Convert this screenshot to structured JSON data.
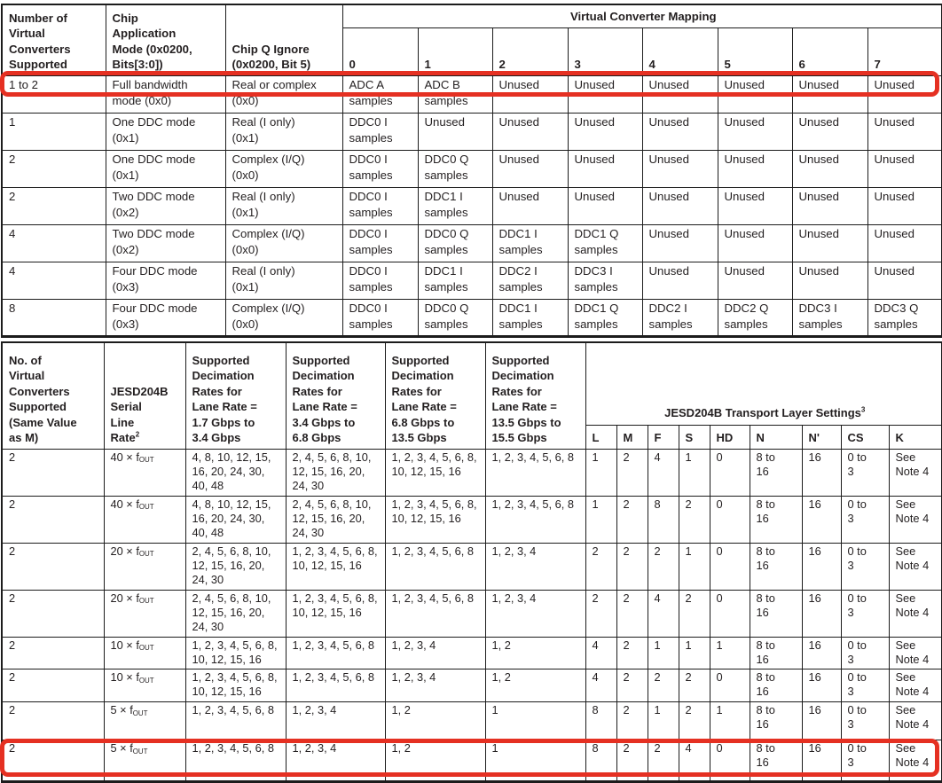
{
  "page": {
    "text_color": "#231f20",
    "border_color": "#1c1c1c",
    "highlight_color": "#e53022",
    "background": "#ffffff"
  },
  "table1": {
    "headers": {
      "col_a": "Number of\nVirtual\nConverters\nSupported",
      "col_b": "Chip\nApplication\nMode (0x0200,\nBits[3:0])",
      "col_c": "Chip Q Ignore\n(0x0200, Bit 5)",
      "group": "Virtual Converter Mapping",
      "mapping": [
        "0",
        "1",
        "2",
        "3",
        "4",
        "5",
        "6",
        "7"
      ]
    },
    "rows": [
      {
        "highlight": true,
        "n": "1 to 2",
        "mode": "Full bandwidth\nmode (0x0)",
        "q": "Real or complex\n(0x0)",
        "m": [
          "ADC A\nsamples",
          "ADC B\nsamples",
          "Unused",
          "Unused",
          "Unused",
          "Unused",
          "Unused",
          "Unused"
        ]
      },
      {
        "highlight": false,
        "n": "1",
        "mode": "One DDC mode\n(0x1)",
        "q": "Real (I only)\n(0x1)",
        "m": [
          "DDC0 I\nsamples",
          "Unused",
          "Unused",
          "Unused",
          "Unused",
          "Unused",
          "Unused",
          "Unused"
        ]
      },
      {
        "highlight": false,
        "n": "2",
        "mode": "One DDC mode\n(0x1)",
        "q": "Complex (I/Q)\n(0x0)",
        "m": [
          "DDC0 I\nsamples",
          "DDC0 Q\nsamples",
          "Unused",
          "Unused",
          "Unused",
          "Unused",
          "Unused",
          "Unused"
        ]
      },
      {
        "highlight": false,
        "n": "2",
        "mode": "Two DDC mode\n(0x2)",
        "q": "Real (I only)\n(0x1)",
        "m": [
          "DDC0 I\nsamples",
          "DDC1 I\nsamples",
          "Unused",
          "Unused",
          "Unused",
          "Unused",
          "Unused",
          "Unused"
        ]
      },
      {
        "highlight": false,
        "n": "4",
        "mode": "Two DDC mode\n(0x2)",
        "q": "Complex (I/Q)\n(0x0)",
        "m": [
          "DDC0 I\nsamples",
          "DDC0 Q\nsamples",
          "DDC1 I\nsamples",
          "DDC1 Q\nsamples",
          "Unused",
          "Unused",
          "Unused",
          "Unused"
        ]
      },
      {
        "highlight": false,
        "n": "4",
        "mode": "Four DDC mode\n(0x3)",
        "q": "Real (I only)\n(0x1)",
        "m": [
          "DDC0 I\nsamples",
          "DDC1 I\nsamples",
          "DDC2 I\nsamples",
          "DDC3 I\nsamples",
          "Unused",
          "Unused",
          "Unused",
          "Unused"
        ]
      },
      {
        "highlight": false,
        "n": "8",
        "mode": "Four DDC mode\n(0x3)",
        "q": "Complex (I/Q)\n(0x0)",
        "m": [
          "DDC0 I\nsamples",
          "DDC0 Q\nsamples",
          "DDC1 I\nsamples",
          "DDC1 Q\nsamples",
          "DDC2 I\nsamples",
          "DDC2 Q\nsamples",
          "DDC3 I\nsamples",
          "DDC3 Q\nsamples"
        ]
      }
    ]
  },
  "table2": {
    "headers": {
      "col_a": "No. of\nVirtual\nConverters\nSupported\n(Same Value\nas M)",
      "col_b": "JESD204B\nSerial\nLine\nRate^{2}",
      "dec": [
        "Supported\nDecimation\nRates for\nLane Rate =\n1.7 Gbps to\n3.4 Gbps",
        "Supported\nDecimation\nRates for\nLane Rate =\n3.4 Gbps to\n6.8 Gbps",
        "Supported\nDecimation\nRates for\nLane Rate =\n6.8 Gbps to\n13.5 Gbps",
        "Supported\nDecimation\nRates for\nLane Rate =\n13.5 Gbps to\n15.5 Gbps"
      ],
      "group": "JESD204B Transport Layer Settings^{3}",
      "transport": [
        "L",
        "M",
        "F",
        "S",
        "HD",
        "N",
        "N'",
        "CS",
        "K"
      ]
    },
    "rows": [
      {
        "highlight": false,
        "n": "2",
        "rate": "40 × f_{OUT}",
        "d1": "4, 8, 10, 12, 15,\n16, 20, 24, 30,\n40, 48",
        "d2": "2, 4, 5, 6, 8, 10,\n12, 15, 16, 20,\n24, 30",
        "d3": "1, 2, 3, 4, 5, 6, 8,\n10, 12, 15, 16",
        "d4": "1, 2, 3, 4, 5, 6, 8",
        "t": [
          "1",
          "2",
          "4",
          "1",
          "0",
          "8 to\n16",
          "16",
          "0 to\n3",
          "See\nNote 4"
        ]
      },
      {
        "highlight": false,
        "n": "2",
        "rate": "40 × f_{OUT}",
        "d1": "4, 8, 10, 12, 15,\n16, 20, 24, 30,\n40, 48",
        "d2": "2, 4, 5, 6, 8, 10,\n12, 15, 16, 20,\n24, 30",
        "d3": "1, 2, 3, 4, 5, 6, 8,\n10, 12, 15, 16",
        "d4": "1, 2, 3, 4, 5, 6, 8",
        "t": [
          "1",
          "2",
          "8",
          "2",
          "0",
          "8 to\n16",
          "16",
          "0 to\n3",
          "See\nNote 4"
        ]
      },
      {
        "highlight": false,
        "n": "2",
        "rate": "20 × f_{OUT}",
        "d1": "2, 4, 5, 6, 8, 10,\n12, 15, 16, 20,\n24, 30",
        "d2": "1, 2, 3, 4, 5, 6, 8,\n10, 12, 15, 16",
        "d3": "1, 2, 3, 4, 5, 6, 8",
        "d4": "1, 2, 3, 4",
        "t": [
          "2",
          "2",
          "2",
          "1",
          "0",
          "8 to\n16",
          "16",
          "0 to\n3",
          "See\nNote 4"
        ]
      },
      {
        "highlight": false,
        "n": "2",
        "rate": "20 × f_{OUT}",
        "d1": "2, 4, 5, 6, 8, 10,\n12, 15, 16, 20,\n24, 30",
        "d2": "1, 2, 3, 4, 5, 6, 8,\n10, 12, 15, 16",
        "d3": "1, 2, 3, 4, 5, 6, 8",
        "d4": "1, 2, 3, 4",
        "t": [
          "2",
          "2",
          "4",
          "2",
          "0",
          "8 to\n16",
          "16",
          "0 to\n3",
          "See\nNote 4"
        ]
      },
      {
        "highlight": false,
        "n": "2",
        "rate": "10 × f_{OUT}",
        "d1": "1, 2, 3, 4, 5, 6, 8,\n10, 12, 15, 16",
        "d2": "1, 2, 3, 4, 5, 6, 8",
        "d3": "1, 2, 3, 4",
        "d4": "1, 2",
        "t": [
          "4",
          "2",
          "1",
          "1",
          "1",
          "8 to\n16",
          "16",
          "0 to\n3",
          "See\nNote 4"
        ]
      },
      {
        "highlight": false,
        "n": "2",
        "rate": "10 × f_{OUT}",
        "d1": "1, 2, 3, 4, 5, 6, 8,\n10, 12, 15, 16",
        "d2": "1, 2, 3, 4, 5, 6, 8",
        "d3": "1, 2, 3, 4",
        "d4": "1, 2",
        "t": [
          "4",
          "2",
          "2",
          "2",
          "0",
          "8 to\n16",
          "16",
          "0 to\n3",
          "See\nNote 4"
        ]
      },
      {
        "highlight": false,
        "n": "2",
        "rate": "5 × f_{OUT}",
        "d1": "1, 2, 3, 4, 5, 6, 8",
        "d2": "1, 2, 3, 4",
        "d3": "1, 2",
        "d4": "1",
        "t": [
          "8",
          "2",
          "1",
          "2",
          "1",
          "8 to\n16",
          "16",
          "0 to\n3",
          "See\nNote 4"
        ]
      },
      {
        "highlight": true,
        "n": "2",
        "rate": "5 × f_{OUT}",
        "d1": "1, 2, 3, 4, 5, 6, 8",
        "d2": "1, 2, 3, 4",
        "d3": "1, 2",
        "d4": "1",
        "t": [
          "8",
          "2",
          "2",
          "4",
          "0",
          "8 to\n16",
          "16",
          "0 to\n3",
          "See\nNote 4"
        ]
      }
    ]
  }
}
